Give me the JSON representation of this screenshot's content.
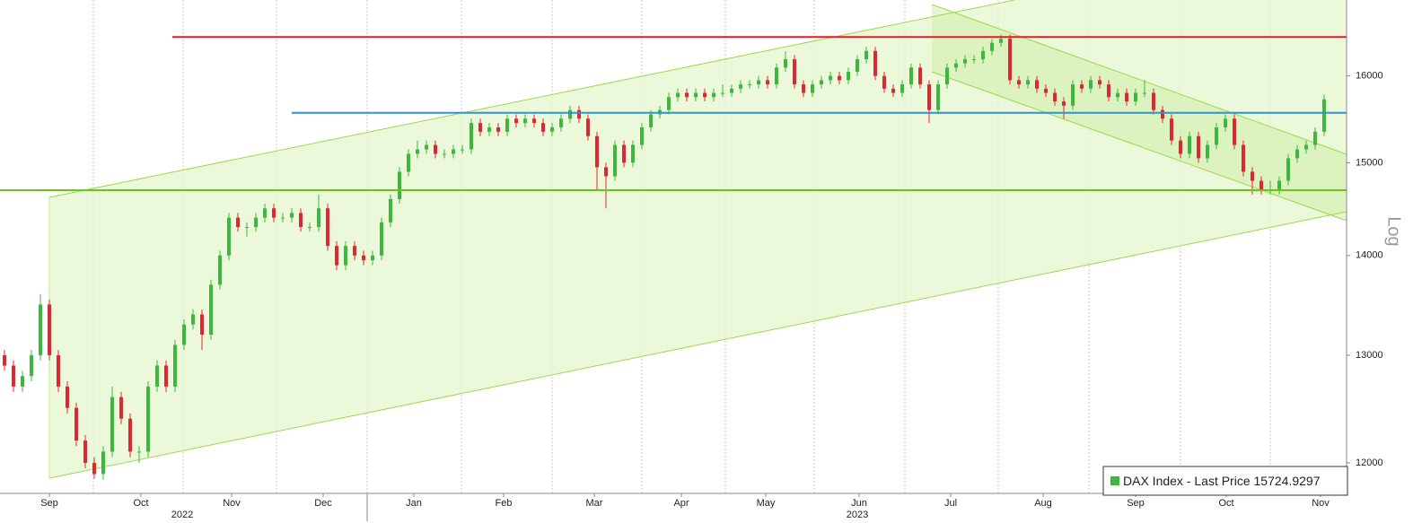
{
  "chart_data": {
    "type": "candlestick",
    "legend": "DAX Index - Last Price",
    "last_price": 15724.9297,
    "y_scale_label": "Log",
    "log": true,
    "up_color": "#3cb83c",
    "down_color": "#e0262f",
    "ylim": [
      11730,
      16930
    ],
    "yticks": [
      12000,
      13000,
      14000,
      15000,
      16000
    ],
    "xlim": [
      -0.5,
      149.5
    ],
    "xticks": [
      {
        "value": 5,
        "label": "Sep"
      },
      {
        "value": 15.2,
        "label": "Oct"
      },
      {
        "value": 25.3,
        "label": "Nov"
      },
      {
        "value": 35.5,
        "label": "Dec"
      },
      {
        "value": 45.6,
        "label": "Jan"
      },
      {
        "value": 55.6,
        "label": "Feb"
      },
      {
        "value": 65.7,
        "label": "Mar"
      },
      {
        "value": 75.4,
        "label": "Apr"
      },
      {
        "value": 84.8,
        "label": "May"
      },
      {
        "value": 95.2,
        "label": "Jun"
      },
      {
        "value": 105.4,
        "label": "Jul"
      },
      {
        "value": 115.7,
        "label": "Aug"
      },
      {
        "value": 126,
        "label": "Sep"
      },
      {
        "value": 136.1,
        "label": "Oct"
      },
      {
        "value": 146.6,
        "label": "Nov"
      }
    ],
    "xgrid": [
      9.9,
      19.9,
      30.3,
      40.4,
      50.9,
      61,
      71,
      80.3,
      90.2,
      100.3,
      110.7,
      120.8,
      131,
      141
    ],
    "year_ticks": [
      {
        "value": 19.8,
        "label": "2022"
      },
      {
        "value": 95,
        "label": "2023"
      }
    ],
    "levels": [
      {
        "value": 16470.8223,
        "color": "#e8192c"
      },
      {
        "value": 15567.8408,
        "color": "#2f8fe0"
      },
      {
        "value": 14697.0918,
        "color": "#6cc417"
      }
    ],
    "ohlc": [
      [
        13000,
        13050,
        12850,
        12900
      ],
      [
        12900,
        12950,
        12650,
        12700
      ],
      [
        12700,
        12850,
        12650,
        12800
      ],
      [
        12800,
        13050,
        12750,
        13000
      ],
      [
        13000,
        13600,
        12950,
        13500
      ],
      [
        13500,
        13550,
        12950,
        13000
      ],
      [
        13000,
        13050,
        12650,
        12700
      ],
      [
        12700,
        12750,
        12450,
        12500
      ],
      [
        12500,
        12550,
        12150,
        12200
      ],
      [
        12200,
        12250,
        11950,
        12000
      ],
      [
        12000,
        12050,
        11860,
        11900
      ],
      [
        11900,
        12150,
        11850,
        12100
      ],
      [
        12100,
        12700,
        12050,
        12600
      ],
      [
        12600,
        12650,
        12350,
        12400
      ],
      [
        12400,
        12450,
        12050,
        12100
      ],
      [
        12100,
        12150,
        12000,
        12100
      ],
      [
        12100,
        12750,
        12050,
        12700
      ],
      [
        12700,
        12950,
        12650,
        12900
      ],
      [
        12900,
        12950,
        12650,
        12700
      ],
      [
        12700,
        13150,
        12650,
        13100
      ],
      [
        13100,
        13350,
        13050,
        13300
      ],
      [
        13300,
        13450,
        13250,
        13400
      ],
      [
        13400,
        13450,
        13050,
        13200
      ],
      [
        13200,
        13750,
        13150,
        13700
      ],
      [
        13700,
        14050,
        13650,
        14000
      ],
      [
        14000,
        14450,
        13950,
        14400
      ],
      [
        14400,
        14450,
        14250,
        14300
      ],
      [
        14300,
        14350,
        14200,
        14300
      ],
      [
        14300,
        14450,
        14250,
        14400
      ],
      [
        14400,
        14550,
        14350,
        14500
      ],
      [
        14500,
        14550,
        14350,
        14400
      ],
      [
        14400,
        14450,
        14350,
        14400
      ],
      [
        14400,
        14500,
        14350,
        14450
      ],
      [
        14450,
        14500,
        14250,
        14300
      ],
      [
        14300,
        14350,
        14250,
        14300
      ],
      [
        14300,
        14650,
        14250,
        14500
      ],
      [
        14500,
        14550,
        14050,
        14100
      ],
      [
        14100,
        14150,
        13850,
        13900
      ],
      [
        13900,
        14150,
        13850,
        14100
      ],
      [
        14100,
        14150,
        13950,
        14000
      ],
      [
        14000,
        14050,
        13900,
        13950
      ],
      [
        13950,
        14050,
        13900,
        14000
      ],
      [
        14000,
        14400,
        13950,
        14350
      ],
      [
        14350,
        14650,
        14300,
        14600
      ],
      [
        14600,
        14950,
        14550,
        14900
      ],
      [
        14900,
        15150,
        14850,
        15100
      ],
      [
        15100,
        15250,
        15050,
        15150
      ],
      [
        15150,
        15250,
        15100,
        15200
      ],
      [
        15200,
        15250,
        15050,
        15100
      ],
      [
        15100,
        15150,
        15050,
        15100
      ],
      [
        15100,
        15200,
        15050,
        15150
      ],
      [
        15150,
        15200,
        15100,
        15150
      ],
      [
        15150,
        15500,
        15100,
        15450
      ],
      [
        15450,
        15500,
        15300,
        15350
      ],
      [
        15350,
        15450,
        15300,
        15400
      ],
      [
        15400,
        15450,
        15300,
        15350
      ],
      [
        15350,
        15550,
        15300,
        15500
      ],
      [
        15500,
        15550,
        15400,
        15450
      ],
      [
        15450,
        15550,
        15400,
        15500
      ],
      [
        15500,
        15550,
        15400,
        15450
      ],
      [
        15450,
        15500,
        15300,
        15350
      ],
      [
        15350,
        15450,
        15300,
        15400
      ],
      [
        15400,
        15550,
        15350,
        15500
      ],
      [
        15500,
        15650,
        15450,
        15600
      ],
      [
        15600,
        15650,
        15450,
        15500
      ],
      [
        15500,
        15550,
        15250,
        15300
      ],
      [
        15300,
        15350,
        14700,
        14950
      ],
      [
        14950,
        15000,
        14500,
        14850
      ],
      [
        14850,
        15250,
        14800,
        15200
      ],
      [
        15200,
        15250,
        14950,
        15000
      ],
      [
        15000,
        15250,
        14950,
        15200
      ],
      [
        15200,
        15450,
        15150,
        15400
      ],
      [
        15400,
        15600,
        15350,
        15550
      ],
      [
        15550,
        15650,
        15500,
        15600
      ],
      [
        15600,
        15800,
        15550,
        15750
      ],
      [
        15750,
        15850,
        15700,
        15800
      ],
      [
        15800,
        15850,
        15700,
        15750
      ],
      [
        15750,
        15850,
        15700,
        15800
      ],
      [
        15800,
        15850,
        15700,
        15750
      ],
      [
        15750,
        15850,
        15700,
        15800
      ],
      [
        15800,
        15900,
        15750,
        15800
      ],
      [
        15800,
        15900,
        15750,
        15850
      ],
      [
        15850,
        15950,
        15800,
        15900
      ],
      [
        15900,
        15950,
        15850,
        15900
      ],
      [
        15900,
        16000,
        15850,
        15950
      ],
      [
        15950,
        16000,
        15850,
        15900
      ],
      [
        15900,
        16150,
        15850,
        16100
      ],
      [
        16100,
        16300,
        16050,
        16200
      ],
      [
        16200,
        16250,
        15850,
        15900
      ],
      [
        15900,
        15950,
        15750,
        15800
      ],
      [
        15800,
        15950,
        15750,
        15900
      ],
      [
        15900,
        16000,
        15850,
        15950
      ],
      [
        15950,
        16050,
        15900,
        16000
      ],
      [
        16000,
        16050,
        15900,
        15950
      ],
      [
        15950,
        16100,
        15900,
        16050
      ],
      [
        16050,
        16250,
        16000,
        16200
      ],
      [
        16200,
        16350,
        16150,
        16300
      ],
      [
        16300,
        16350,
        15950,
        16000
      ],
      [
        16000,
        16050,
        15800,
        15850
      ],
      [
        15850,
        15900,
        15750,
        15800
      ],
      [
        15800,
        15950,
        15750,
        15900
      ],
      [
        15900,
        16150,
        15850,
        16100
      ],
      [
        16100,
        16150,
        15850,
        15900
      ],
      [
        15900,
        15950,
        15450,
        15600
      ],
      [
        15600,
        15950,
        15550,
        15900
      ],
      [
        15900,
        16150,
        15850,
        16100
      ],
      [
        16100,
        16200,
        16050,
        16150
      ],
      [
        16150,
        16250,
        16100,
        16200
      ],
      [
        16200,
        16250,
        16150,
        16200
      ],
      [
        16200,
        16350,
        16150,
        16300
      ],
      [
        16300,
        16450,
        16250,
        16400
      ],
      [
        16400,
        16500,
        16350,
        16450
      ],
      [
        16450,
        16500,
        15900,
        15950
      ],
      [
        15950,
        16000,
        15850,
        15900
      ],
      [
        15900,
        16000,
        15850,
        15950
      ],
      [
        15950,
        16000,
        15800,
        15850
      ],
      [
        15850,
        15900,
        15750,
        15800
      ],
      [
        15800,
        15850,
        15650,
        15700
      ],
      [
        15700,
        15750,
        15500,
        15650
      ],
      [
        15650,
        15950,
        15600,
        15900
      ],
      [
        15900,
        15950,
        15800,
        15850
      ],
      [
        15850,
        16000,
        15800,
        15950
      ],
      [
        15950,
        16000,
        15850,
        15900
      ],
      [
        15900,
        15950,
        15700,
        15750
      ],
      [
        15750,
        15850,
        15700,
        15800
      ],
      [
        15800,
        15850,
        15650,
        15700
      ],
      [
        15700,
        15850,
        15650,
        15800
      ],
      [
        15800,
        15950,
        15750,
        15800
      ],
      [
        15800,
        15850,
        15550,
        15600
      ],
      [
        15600,
        15650,
        15450,
        15500
      ],
      [
        15500,
        15550,
        15200,
        15250
      ],
      [
        15250,
        15300,
        15050,
        15100
      ],
      [
        15100,
        15350,
        15050,
        15300
      ],
      [
        15300,
        15350,
        15000,
        15050
      ],
      [
        15050,
        15250,
        15000,
        15200
      ],
      [
        15200,
        15450,
        15150,
        15400
      ],
      [
        15400,
        15550,
        15350,
        15500
      ],
      [
        15500,
        15550,
        15150,
        15200
      ],
      [
        15200,
        15250,
        14850,
        14900
      ],
      [
        14900,
        14950,
        14650,
        14800
      ],
      [
        14800,
        14850,
        14650,
        14700
      ],
      [
        14700,
        14800,
        14650,
        14700
      ],
      [
        14700,
        14850,
        14650,
        14800
      ],
      [
        14800,
        15100,
        14750,
        15050
      ],
      [
        15050,
        15200,
        15000,
        15150
      ],
      [
        15150,
        15250,
        15100,
        15200
      ],
      [
        15200,
        15400,
        15150,
        15350
      ],
      [
        15350,
        15780,
        15300,
        15724.9297
      ]
    ]
  }
}
